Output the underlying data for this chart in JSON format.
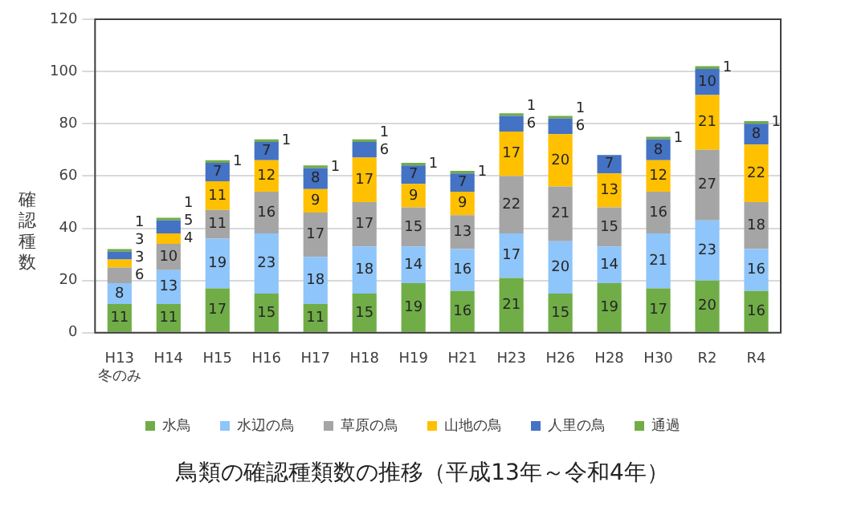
{
  "chart_data": {
    "type": "bar",
    "stacked": true,
    "title": "鳥類の確認種類数の推移（平成13年～令和4年）",
    "ylabel": "確認種数",
    "categories": [
      "H13\n冬のみ",
      "H14",
      "H15",
      "H16",
      "H17",
      "H18",
      "H19",
      "H21",
      "H23",
      "H26",
      "H28",
      "H30",
      "R2",
      "R4"
    ],
    "series": [
      {
        "name": "水鳥",
        "color": "#70ad47",
        "values": [
          11,
          11,
          17,
          15,
          11,
          15,
          19,
          16,
          21,
          15,
          19,
          17,
          20,
          16
        ]
      },
      {
        "name": "水辺の鳥",
        "color": "#8ec5fa",
        "values": [
          8,
          13,
          19,
          23,
          18,
          18,
          14,
          16,
          17,
          20,
          14,
          21,
          23,
          16
        ]
      },
      {
        "name": "草原の鳥",
        "color": "#a5a5a5",
        "values": [
          6,
          10,
          11,
          16,
          17,
          17,
          15,
          13,
          22,
          21,
          15,
          16,
          27,
          18
        ]
      },
      {
        "name": "山地の鳥",
        "color": "#ffc000",
        "values": [
          3,
          4,
          11,
          12,
          9,
          17,
          9,
          9,
          17,
          20,
          13,
          12,
          21,
          22
        ]
      },
      {
        "name": "人里の鳥",
        "color": "#4472c4",
        "values": [
          3,
          5,
          7,
          7,
          8,
          6,
          7,
          7,
          6,
          6,
          7,
          8,
          10,
          8
        ]
      },
      {
        "name": "通過",
        "color": "#70ad47",
        "values": [
          1,
          1,
          1,
          1,
          1,
          1,
          1,
          1,
          1,
          1,
          null,
          1,
          1,
          1
        ]
      }
    ],
    "ylim": [
      0,
      120
    ],
    "yticks": [
      0,
      20,
      40,
      60,
      80,
      100,
      120
    ],
    "grid": "y",
    "legend": "bottom",
    "data_labels": true
  }
}
